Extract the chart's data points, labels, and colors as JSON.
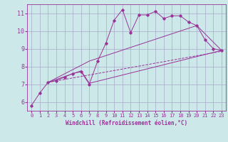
{
  "bg_color": "#cce8e8",
  "grid_color": "#aaaacc",
  "line_color": "#993399",
  "xlabel": "Windchill (Refroidissement éolien,°C)",
  "xlim": [
    -0.5,
    23.5
  ],
  "ylim": [
    5.5,
    11.5
  ],
  "yticks": [
    6,
    7,
    8,
    9,
    10,
    11
  ],
  "xticks": [
    0,
    1,
    2,
    3,
    4,
    5,
    6,
    7,
    8,
    9,
    10,
    11,
    12,
    13,
    14,
    15,
    16,
    17,
    18,
    19,
    20,
    21,
    22,
    23
  ],
  "curve1_x": [
    0,
    1,
    2,
    3,
    4,
    5,
    6,
    7,
    8,
    9,
    10,
    11,
    12,
    13,
    14,
    15,
    16,
    17,
    18,
    19,
    20,
    21,
    22,
    23
  ],
  "curve1_y": [
    5.8,
    6.5,
    7.1,
    7.2,
    7.4,
    7.6,
    7.7,
    7.0,
    8.3,
    9.3,
    10.6,
    11.2,
    9.9,
    10.9,
    10.9,
    11.1,
    10.7,
    10.85,
    10.85,
    10.5,
    10.3,
    9.5,
    9.0,
    8.9
  ],
  "curve2_x": [
    2,
    7,
    20,
    23
  ],
  "curve2_y": [
    7.1,
    8.3,
    10.3,
    8.9
  ],
  "curve3_x": [
    2,
    23
  ],
  "curve3_y": [
    7.1,
    8.85
  ],
  "curve4_x": [
    2,
    6,
    7,
    23
  ],
  "curve4_y": [
    7.1,
    7.75,
    7.05,
    8.9
  ],
  "figsize": [
    3.2,
    2.0
  ],
  "dpi": 100
}
